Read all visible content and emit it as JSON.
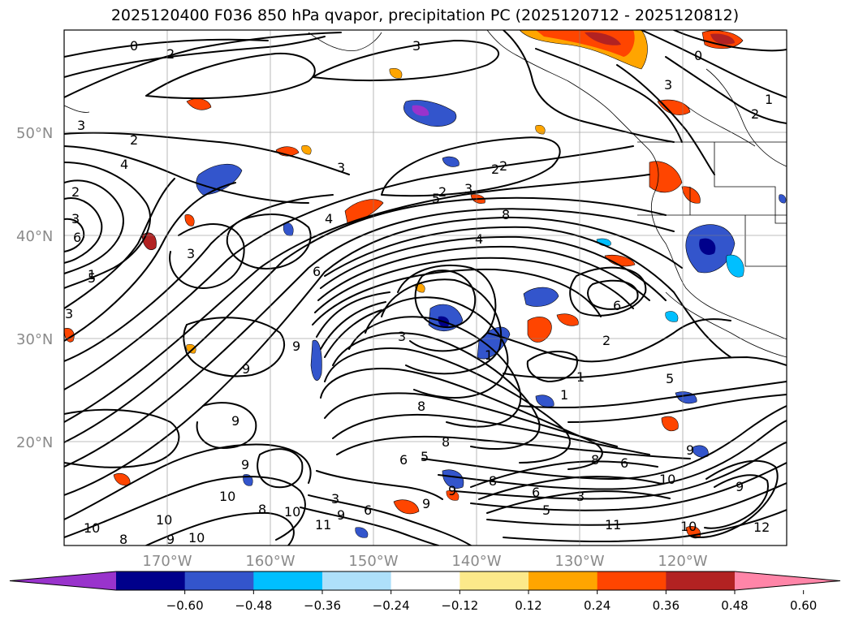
{
  "title": "2025120400 F036 850 hPa qvapor, precipitation PC (2025120712 - 2025120812)",
  "latitude_labels": [
    "50°N",
    "40°N",
    "30°N",
    "20°N"
  ],
  "longitude_labels": [
    "170°W",
    "160°W",
    "150°W",
    "140°W",
    "130°W",
    "120°W"
  ],
  "colorbar": {
    "colors": [
      "#9933cc",
      "#00008b",
      "#3355cc",
      "#00bfff",
      "#aee0fa",
      "#ffffff",
      "#fce98a",
      "#ffa500",
      "#ff4500",
      "#b22222",
      "#ff85a8"
    ],
    "ticks": [
      "−0.60",
      "−0.48",
      "−0.36",
      "−0.24",
      "−0.12",
      "0.12",
      "0.24",
      "0.36",
      "0.48",
      "0.60"
    ]
  },
  "contour_labels": [
    "0",
    "2",
    "3",
    "3",
    "2",
    "3",
    "2",
    "4",
    "2",
    "3",
    "3",
    "2",
    "5",
    "3",
    "8",
    "4",
    "6",
    "4",
    "3",
    "6",
    "5",
    "6",
    "9",
    "9",
    "3",
    "9",
    "1",
    "1",
    "2",
    "5",
    "1",
    "10",
    "9",
    "8",
    "5",
    "6",
    "8",
    "8",
    "9",
    "9",
    "3",
    "5",
    "8",
    "11",
    "10",
    "10",
    "11",
    "10",
    "6",
    "9",
    "10",
    "10",
    "2",
    "0",
    "1",
    "2",
    "3",
    "1",
    "6",
    "3",
    "8",
    "6",
    "10",
    "9",
    "12",
    "9",
    "8",
    "9"
  ]
}
